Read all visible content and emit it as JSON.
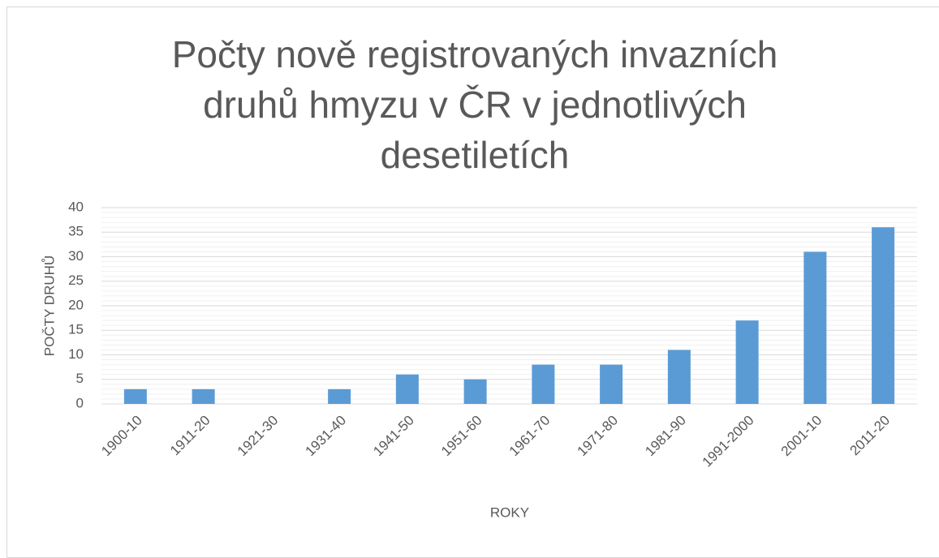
{
  "chart_data": {
    "type": "bar",
    "title": "Počty nově registrovaných invazních druhů hmyzu v ČR v jednotlivých desetiletích",
    "x_label": "ROKY",
    "y_label": "POČTY DRUHŮ",
    "categories": [
      "1900-10",
      "1911-20",
      "1921-30",
      "1931-40",
      "1941-50",
      "1951-60",
      "1961-70",
      "1971-80",
      "1981-90",
      "1991-2000",
      "2001-10",
      "2011-20"
    ],
    "values": [
      3,
      3,
      0,
      3,
      6,
      5,
      8,
      8,
      11,
      17,
      31,
      36
    ],
    "color": "#5b9bd5",
    "ylim": [
      0,
      40
    ],
    "yticks": [
      0,
      5,
      10,
      15,
      20,
      25,
      30,
      35,
      40
    ],
    "minor_yticks": [
      1,
      2,
      3,
      4,
      6,
      7,
      8,
      9,
      11,
      12,
      13,
      14,
      16,
      17,
      18,
      19,
      21,
      22,
      23,
      24,
      26,
      27,
      28,
      29,
      31,
      32,
      33,
      34,
      36,
      37,
      38,
      39
    ],
    "grid": true
  }
}
